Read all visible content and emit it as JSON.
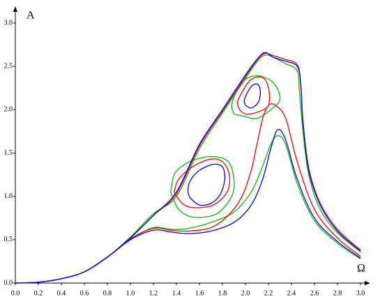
{
  "chart_data": {
    "type": "line",
    "x_label": "Ω",
    "y_label": "A",
    "xlim": [
      0,
      3.0
    ],
    "ylim": [
      0,
      3.0
    ],
    "xticks": [
      {
        "value": 0,
        "label": "0.0"
      },
      {
        "value": 0.2,
        "label": "0.2"
      },
      {
        "value": 0.4,
        "label": "0.4"
      },
      {
        "value": 0.6,
        "label": "0.6"
      },
      {
        "value": 0.8,
        "label": "0.8"
      },
      {
        "value": 1.0,
        "label": "1.0"
      },
      {
        "value": 1.2,
        "label": "1.2"
      },
      {
        "value": 1.4,
        "label": "1.4"
      },
      {
        "value": 1.6,
        "label": "1.6"
      },
      {
        "value": 1.8,
        "label": "1.8"
      },
      {
        "value": 2.0,
        "label": "2.0"
      },
      {
        "value": 2.2,
        "label": "2.2"
      },
      {
        "value": 2.4,
        "label": "2.4"
      },
      {
        "value": 2.6,
        "label": "2.6"
      },
      {
        "value": 2.8,
        "label": "2.8"
      },
      {
        "value": 3.0,
        "label": "3.0"
      }
    ],
    "yticks": [
      {
        "value": 0,
        "label": "0.0"
      },
      {
        "value": 0.5,
        "label": "0.5"
      },
      {
        "value": 1.0,
        "label": "1.0"
      },
      {
        "value": 1.5,
        "label": "1.5"
      },
      {
        "value": 2.0,
        "label": "2.0"
      },
      {
        "value": 2.5,
        "label": "2.5"
      },
      {
        "value": 3.0,
        "label": "3.0"
      }
    ],
    "grid": false,
    "series": [
      {
        "color": "#00c000",
        "x": [
          0,
          0.2,
          0.4,
          0.6,
          0.8,
          1.0,
          1.2,
          1.4,
          1.6,
          1.8,
          2.0,
          2.1,
          2.17,
          2.25,
          2.35,
          2.45,
          2.47,
          2.5,
          2.55,
          2.65,
          2.8,
          3.0
        ],
        "values": [
          0,
          0.01,
          0.05,
          0.13,
          0.3,
          0.53,
          0.8,
          1.0,
          1.55,
          1.96,
          2.36,
          2.55,
          2.63,
          2.6,
          2.53,
          2.45,
          2.2,
          1.75,
          1.25,
          0.85,
          0.58,
          0.36
        ]
      },
      {
        "color": "#00c000",
        "x": [
          0,
          0.2,
          0.4,
          0.6,
          0.8,
          1.0,
          1.2,
          1.35,
          1.5,
          1.7,
          1.9,
          2.05,
          2.15,
          2.22,
          2.28,
          2.35,
          2.45,
          2.6,
          2.8,
          3.0
        ],
        "values": [
          0,
          0.01,
          0.05,
          0.13,
          0.3,
          0.5,
          0.64,
          0.62,
          0.63,
          0.7,
          0.82,
          1.05,
          1.35,
          1.6,
          1.7,
          1.6,
          1.15,
          0.72,
          0.46,
          0.28
        ]
      },
      {
        "color": "#00c000",
        "x": [
          1.35,
          1.42,
          1.55,
          1.75,
          1.88,
          1.9,
          1.85,
          1.72,
          1.55,
          1.45,
          1.38,
          1.35
        ],
        "values": [
          1.05,
          0.85,
          0.76,
          0.8,
          1.0,
          1.2,
          1.4,
          1.46,
          1.42,
          1.35,
          1.25,
          1.05
        ]
      },
      {
        "color": "#00c000",
        "x": [
          1.9,
          2.0,
          2.1,
          2.22,
          2.3,
          2.25,
          2.12,
          2.0,
          1.92,
          1.88,
          1.9
        ],
        "values": [
          1.95,
          1.92,
          1.9,
          2.0,
          2.12,
          2.3,
          2.39,
          2.35,
          2.2,
          2.05,
          1.95
        ]
      },
      {
        "color": "#ff0000",
        "x": [
          0,
          0.2,
          0.4,
          0.6,
          0.8,
          1.0,
          1.2,
          1.4,
          1.6,
          1.8,
          2.0,
          2.1,
          2.17,
          2.25,
          2.35,
          2.45,
          2.48,
          2.5,
          2.55,
          2.65,
          2.8,
          3.0
        ],
        "values": [
          0,
          0.01,
          0.05,
          0.13,
          0.3,
          0.52,
          0.78,
          1.03,
          1.58,
          1.98,
          2.38,
          2.57,
          2.65,
          2.62,
          2.58,
          2.52,
          2.32,
          1.88,
          1.33,
          0.92,
          0.62,
          0.38
        ]
      },
      {
        "color": "#ff0000",
        "x": [
          0,
          0.2,
          0.4,
          0.6,
          0.8,
          1.0,
          1.2,
          1.35,
          1.5,
          1.7,
          1.85,
          1.97,
          2.05,
          2.1,
          2.15,
          2.2,
          2.26,
          2.35,
          2.45,
          2.6,
          2.8,
          3.0
        ],
        "values": [
          0,
          0.01,
          0.05,
          0.13,
          0.3,
          0.51,
          0.63,
          0.61,
          0.6,
          0.64,
          0.78,
          1.0,
          1.3,
          1.6,
          1.9,
          2.05,
          2.05,
          1.9,
          1.4,
          0.85,
          0.52,
          0.31
        ]
      },
      {
        "color": "#ff0000",
        "x": [
          1.38,
          1.45,
          1.55,
          1.72,
          1.84,
          1.86,
          1.8,
          1.7,
          1.55,
          1.42,
          1.38
        ],
        "values": [
          1.05,
          0.92,
          0.87,
          0.9,
          1.05,
          1.25,
          1.4,
          1.43,
          1.35,
          1.2,
          1.05
        ]
      },
      {
        "color": "#ff0000",
        "x": [
          1.95,
          2.0,
          2.1,
          2.2,
          2.2,
          2.15,
          2.05,
          1.97,
          1.93,
          1.95
        ],
        "values": [
          2.0,
          1.95,
          1.97,
          2.05,
          2.25,
          2.37,
          2.35,
          2.2,
          2.08,
          2.0
        ]
      },
      {
        "color": "#0000ff",
        "x": [
          0,
          0.2,
          0.4,
          0.6,
          0.8,
          1.0,
          1.2,
          1.4,
          1.6,
          1.8,
          2.0,
          2.1,
          2.17,
          2.25,
          2.35,
          2.45,
          2.48,
          2.5,
          2.55,
          2.65,
          2.8,
          3.0
        ],
        "values": [
          0,
          0.01,
          0.05,
          0.13,
          0.3,
          0.52,
          0.78,
          1.05,
          1.6,
          2.0,
          2.4,
          2.58,
          2.66,
          2.6,
          2.56,
          2.5,
          2.3,
          1.85,
          1.3,
          0.9,
          0.6,
          0.37
        ]
      },
      {
        "color": "#0000ff",
        "x": [
          0,
          0.2,
          0.4,
          0.6,
          0.8,
          1.0,
          1.2,
          1.35,
          1.5,
          1.7,
          1.9,
          2.05,
          2.15,
          2.22,
          2.28,
          2.35,
          2.45,
          2.6,
          2.8,
          3.0
        ],
        "values": [
          0,
          0.01,
          0.05,
          0.13,
          0.3,
          0.5,
          0.61,
          0.59,
          0.57,
          0.6,
          0.7,
          0.9,
          1.2,
          1.55,
          1.77,
          1.65,
          1.2,
          0.75,
          0.48,
          0.29
        ]
      },
      {
        "color": "#0000ff",
        "x": [
          1.52,
          1.6,
          1.7,
          1.78,
          1.82,
          1.8,
          1.72,
          1.6,
          1.52,
          1.5,
          1.52
        ],
        "values": [
          0.98,
          0.9,
          0.92,
          1.02,
          1.2,
          1.34,
          1.37,
          1.3,
          1.18,
          1.06,
          0.98
        ]
      },
      {
        "color": "#0000ff",
        "x": [
          2.0,
          2.05,
          2.11,
          2.13,
          2.11,
          2.06,
          2.01,
          1.99,
          2.0
        ],
        "values": [
          2.05,
          2.02,
          2.08,
          2.2,
          2.29,
          2.28,
          2.18,
          2.1,
          2.05
        ]
      }
    ]
  }
}
